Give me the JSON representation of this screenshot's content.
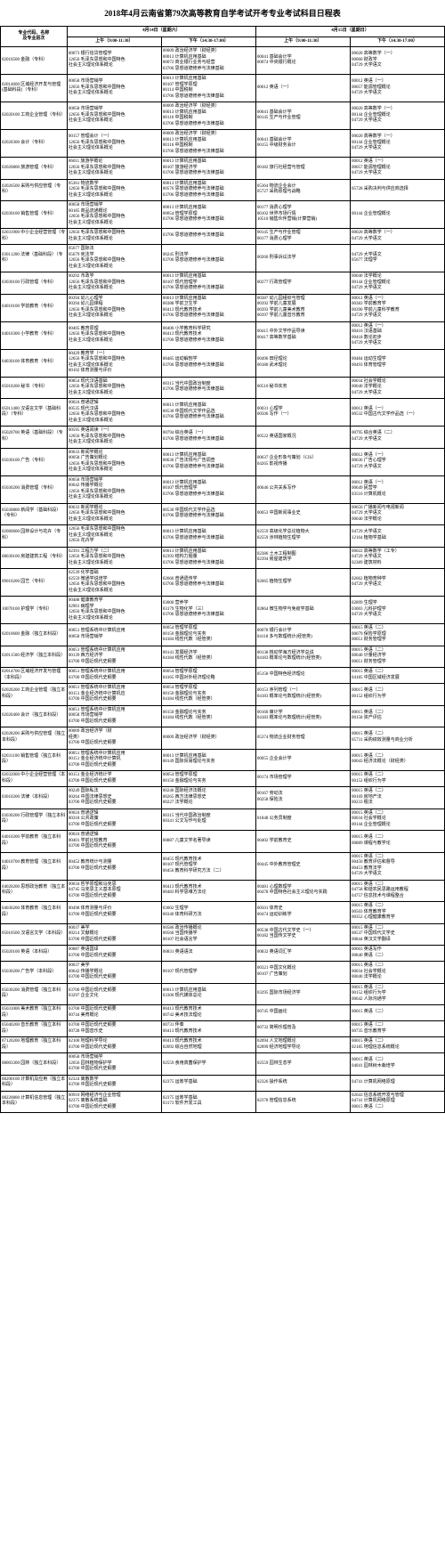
{
  "title": "2018年4月云南省第79次高等教育自学考试开考专业考试科目日程表",
  "headers": {
    "major": "专业代码、名称\n及专业层次",
    "day1": "4月14日（星期六）",
    "day2": "4月15日（星期日）",
    "am": "上午（9:00-11:30）",
    "pm": "下午（14:30-17:00）"
  },
  "rows": [
    {
      "major": "02010500 金融（专科）",
      "d1am": "00073 银行信贷管理学\n12656 毛泽东思想和中国特色\n社会主义理论体系概论",
      "d1pm": "00009 政治经济学（财经类）\n00013 计算机应用基础\n00072 商业银行业务与经营\n03706 思想道德修养与法律基础",
      "d2am": "00041 基础会计学\n00074 中央银行概论",
      "d2pm": "00020 高等数学（一）\n00060 财政学\n04729 大学语文"
    },
    {
      "major": "02014600 区域经济开发与管理(基础科段)（专科）",
      "d1am": "00058 市场营销学\n12656 毛泽东思想和中国特色\n社会主义理论体系概论",
      "d1pm": "00013 计算机应用基础\n00107 管理学原理\n00114 中国税制\n03706 思想道德修养与法律基础",
      "d2am": "00012 英语（一）",
      "d2pm": "00012 英语（一）\n00057 能源管理概论\n04729 大学语文"
    },
    {
      "major": "02020100 工商企业管理（专科）",
      "d1am": "00058 市场营销学\n12656 毛泽东思想和中国特色\n社会主义理论体系概论",
      "d1pm": "00009 政治经济学（财经类）\n00013 计算机应用基础\n00116 中国税制\n03706 思想道德修养与法律基础",
      "d2am": "00041 基础会计学\n00145 生产与作业管理",
      "d2pm": "00020 高等数学（一）\n00144 企业管理概论\n04729 大学语文"
    },
    {
      "major": "02020300 会计（专科）",
      "d1am": "00157 管理会计（一）\n12656 毛泽东思想和中国特色\n社会主义理论体系概论",
      "d1pm": "00009 政治经济学（财经类）\n00013 计算机应用基础\n00116 中国税制\n03706 思想道德修养与法律基础",
      "d2am": "00041 基础会计学\n00155 中级财务会计",
      "d2pm": "00020 高等数学（一）\n00144 企业管理概论\n04729 大学语文"
    },
    {
      "major": "02020800 旅游管理（专科）",
      "d1am": "06011 旅游学概论\n12656 毛泽东思想和中国特色\n社会主义理论体系概论",
      "d1pm": "00013 计算机应用基础\n00107 旅游经济学\n03706 思想道德修养与法律基础",
      "d2am": "00182 旅行社经营与管理",
      "d2pm": "00012 英语（一）\n00057 能源管理概论\n04729 大学语文"
    },
    {
      "major": "02026500 采购与供应管理（专科）",
      "d1am": "05361 物流数学\n12656 毛泽东思想和中国特色\n社会主义理论体系概论",
      "d1pm": "00013 计算机应用基础\n00576 思想道德修养与法律基础\n03706 思想道德修养与法律基础",
      "d2am": "05364 物流企业会计\n05727 采购原理与战略",
      "d2pm": "05728 采购决判与供应商选择"
    },
    {
      "major": "02030100 销售管理（专科）",
      "d1am": "00058 市场营销学\n00185 商品流通概论\n12656 毛泽东思想和中国特色\n社会主义理论体系概论",
      "d1pm": "00013 计算机应用基础\n00054 管理学原理\n03706 思想道德修养与法律基础",
      "d2am": "00177 消费心理学\n00102 世界市场行情\n10510 销售伙伴营销(计算营销)",
      "d2pm": "00144 企业管理概论"
    },
    {
      "major": "02031900 中小企业经营管理（专科）",
      "d1am": "12656 毛泽东思想和中国特色\n社会主义理论体系概论",
      "d1pm": "03706 思想道德修养与法律基础",
      "d2am": "00145 生产与作业管理\n00177 消费心理学",
      "d2pm": "00020 高等数学（一）\n04729 大学语文"
    },
    {
      "major": "03011200 法律（基础科段）（专科）",
      "d1am": "05677 国际法\n05679 宪法学\n12656 毛泽东思想和中国特色\n社会主义理论体系概论",
      "d1pm": "00245 刑法学\n03706 思想道德修养与法律基础",
      "d2am": "00260 刑事诉讼法学",
      "d2pm": "04729 大学语文\n05677 法理学"
    },
    {
      "major": "03030100 行政管理（专科）",
      "d1am": "00292 市政学\n12656 毛泽东思想和中国特色\n社会主义理论体系概论",
      "d1pm": "00013 计算机应用基础\n00107 现代管理学\n03706 思想道德修养与法律基础",
      "d2am": "00277 行政管理学",
      "d2pm": "00040 法学概论\n00144 企业管理概论\n04729 大学语文"
    },
    {
      "major": "04010100 学前教育（专科）",
      "d1am": "00394 幼儿心理学\n00394 幼儿园课程\n12656 毛泽东思想和中国特色\n社会主义理论体系概论",
      "d1pm": "00013 计算机应用基础\n00388 学前卫生学\n00413 现代教育技术\n03706 思想道德修养与法律基础",
      "d2am": "00387 幼儿园组织与管理\n00392 学前儿童发展\n00393 学前儿童美术教育\n00397 学前儿童音乐教育",
      "d2pm": "00012 英语（一）\n00383 学前教育学\n00390 学前儿童科学教育\n04729 大学语文"
    },
    {
      "major": "04010300 小学教育（专科）",
      "d1am": "00405 教育原理\n12656 毛泽东思想和中国特色\n社会主义理论体系概论",
      "d1pm": "00406 小学教育科学研究\n00413 现代教育技术\n03706 思想道德修养与法律基础",
      "d2am": "00415 中外文学作品导读\n00417 高等数学基础",
      "d2pm": "00012 英语（一）\n00416 汉语基础\n00418 数论初步\n04729 大学语文"
    },
    {
      "major": "04030100 体育教育（专科）",
      "d1am": "00429 教育学（一）\n12656 毛泽东思想和中国特色\n社会主义理论体系概论\n00102 体育测量与评价",
      "d1pm": "00485 运动解剖学\n03706 思想道德修养与法律基础",
      "d2am": "00496 田径理论\n00180 武术理论",
      "d2pm": "00484 运动生理学\n00493 体育管理学"
    },
    {
      "major": "05010200 秘书（专科）",
      "d1am": "00854 现代汉语基础\n12656 毛泽东思想和中国特色\n社会主义理论体系概论",
      "d1pm": "00315 当代中国政治制度\n03706 思想道德修养与法律基础",
      "d2am": "00510 秘书实务",
      "d2pm": "00034 社会学概论\n00040 法学概论\n04729 大学语文"
    },
    {
      "major": "05011400 汉语言文学（基础科段）（专科）",
      "d1am": "00024 普通逻辑\n00535 现代汉语\n12656 毛泽东思想和中国特色\n社会主义理论体系概论",
      "d1pm": "00013 计算机应用基础\n00530 中国现代文学作品选\n03706 思想道德修养与法律基础",
      "d2am": "00031 心理学\n00506 写作（一）",
      "d2pm": "00012 英语（一）\n00532 中国古代文学作品选（一）"
    },
    {
      "major": "05020700 英语（基础科段）（专科）",
      "d1am": "00595 英语阅读（一）\n12656 毛泽东思想和中国特色\n社会主义理论体系概论",
      "d1pm": "00794 综合英语（一）\n03706 思想道德修养与法律基础",
      "d2am": "00522 英语国家概况",
      "d2pm": "00795 综合英语（二）\n04729 大学语文"
    },
    {
      "major": "05030100 广告（专科）",
      "d1am": "00633 新闻学概论\n00058 广告策划概论\n12656 毛泽东思想和中国特色\n社会主义理论体系概论",
      "d1pm": "00013 计算机应用基础\n00636 广告法规与广告调查\n03706 思想道德修养与法律基础",
      "d2am": "00637 企业形象与策划（CIS）\n04265 影视传播",
      "d2pm": "00012 英语（一）\n00636 广告心理学\n04729 大学语文"
    },
    {
      "major": "05030200 消费管理（专科）",
      "d1am": "00058 市场营销学\n00642 传播学概论\n12656 毛泽东思想和中国特色\n社会主义理论体系概论",
      "d1pm": "00013 计算机应用基础\n00107 现代管理学\n03706 思想道德修养与法律基础",
      "d2am": "00646 公共关系写作",
      "d2pm": "00012 英语（一）\n00649 民营学\n03516 计算机概论"
    },
    {
      "major": "05030800 新闻学（基础科段）（专科）",
      "d1am": "00633 新闻学概论\n12656 毛泽东思想和中国特色\n社会主义理论体系概论",
      "d1pm": "00530 中国现代文学作品选\n03706 思想道德修养与法律基础",
      "d2am": "00653 中国新闻事业史",
      "d2pm": "00656 广播新闻与电视新闻\n04729 大学语文\n00040 法学概论"
    },
    {
      "major": "02060600 园林设计与花卉（专科）",
      "d1am": "12656 毛泽东思想和中国特色\n社会主义理论体系概论\n12656 花卉学",
      "d1pm": "00013 计算机应用基础\n03706 思想道德修养与法律基础",
      "d2am": "02559 高级化学总论植物大\n02559 涉林植物生理学",
      "d2pm": "04729 大学语文\n12164 植物学基础"
    },
    {
      "major": "08030100 房建建筑工程（专科）",
      "d1am": "02391 工程力学（二）\n12656 毛泽东思想和中国特色\n社会主义理论体系概论",
      "d1pm": "00013 计算机应用基础\n02393 结构力题量\n03706 思想道德修养与法律基础",
      "d2am": "02386 土木工程制图\n02394 房屋建筑学",
      "d2pm": "00022 高等数学（工专）\n04729 大学语文\n02389 建筑材料"
    },
    {
      "major": "09010200 园艺（专科）",
      "d1am": "02539 化学基础\n02559 微通学说培学\n12656 毛泽东思想和中国特色\n社会主义理论体系概论",
      "d1pm": "02666 普通遗传学\n03706 思想道德修养与法律基础",
      "d2am": "02665 植物生理学",
      "d2pm": "02662 植物育种学\n04729 大学语文"
    },
    {
      "major": "10070100 护理学（专科）",
      "d1am": "00488 健康教育学\n02901 病理学\n12656 毛泽东思想和中国特色\n社会主义理论体系概论",
      "d1pm": "03000 营养学\n03179 生物化学（三）\n03706 思想道德修养与法律基础",
      "d2am": "02864 微生物学与免疫学基础",
      "d2pm": "02899 生理学\n03003 儿科护理学\n04729 大学语文"
    },
    {
      "major": "02010600 金融（独立本科段）",
      "d1am": "00051 管理系统中计算机应用\n00058 市场营销学",
      "d1pm": "00054 管理学原理\n00150 金融理论与实务\n04184 线性代数（经管类）",
      "d2am": "00078 银行会计学\n04118 多与数理统计(经管类)",
      "d2pm": "00015 英语（二）\n00079 保险学原理\n00051 财务管理学"
    },
    {
      "major": "02011500 经济学（独立本科段）",
      "d1am": "00051 管理系统中计算机应用\n00139 西方经济学\n03700 中国近现代史纲要",
      "d1pm": "00141 发展经济学\n04184 线性代数（经管类）",
      "d2am": "00138 核动学海方经济学总说\n04183 概率论与数理统计(经管类)",
      "d2pm": "00015 英语（二）\n00040 计量经济学\n00051 财务管理学"
    },
    {
      "major": "02014700 区域经济开发与管理（本科段）",
      "d1am": "00051 管理系统中计算机应用\n03700 中国近现代史纲要",
      "d1pm": "00054 管理学原理\n04165 中国对外经济理论略",
      "d2am": "05158 中国特色经济理论",
      "d2pm": "00015 英语（二）\n04185 中国区域经济发展"
    },
    {
      "major": "02020200 工商企业管理（独立本科段）",
      "d1am": "00051 管理系统中计算机应用\n00151 金业经济统中计算机应\n03700 中国近现代史纲要",
      "d1pm": "00054 管理学原理\n00150 金融理论与实务\n04184 线性代数（经管类）",
      "d2am": "00153 序列管理（一）\n04183 概率论与数理统计(经管类)",
      "d2pm": "00015 英语（二）\n00152 组织行为学"
    },
    {
      "major": "02020400 会计（独立本科段）",
      "d1am": "00051 管理系统中计算机应用\n00058 市场营销学\n03700 中国近现代史纲要",
      "d1pm": "00150 金融理论与实务\n04184 线性代数（经管类）",
      "d2am": "00160 审计学\n04183 概率论与数理统计(经管类)",
      "d2pm": "00015 英语（二）\n00158 资产评估"
    },
    {
      "major": "02028200 采购与供应管理（独立本科段）",
      "d1am": "00009 政治经济学（财\n经类）\n03700 中国近现代史纲要",
      "d1pm": "00009 政治经济学（财经类）",
      "d2am": "05374 物流企业财务管理",
      "d2pm": "00015 英语（二）\n05731 采购绩效测量与商业分析"
    },
    {
      "major": "02031100 销售管理（独立本科段）",
      "d1am": "00051 管理系统中计算机应用\n00151 金业经济统中计算机\n03700 中国近现代史纲要",
      "d1pm": "00013 计算机应用基础\n00149 国际贸易理论与实务",
      "d2am": "00055 企业会计学",
      "d2pm": "00015 英语（二）\n00043 经济法概论（财经类）"
    },
    {
      "major": "02032000 中小企业经营管理（本科段）",
      "d1am": "00151 金业经济统计学\n03700 中国近现代史纲要",
      "d1pm": "00054 管理学原理\n00150 金融理论与实务",
      "d2am": "00174 市场管理学",
      "d2pm": "00015 英语（二）\n00152 组织行为学"
    },
    {
      "major": "03010200 法律（本科段）",
      "d1am": "00249 国际私法\n00264 中国法律思想史\n03700 中国近现代史纲要",
      "d1pm": "00246 国际经济法概论\n00265 西方法律思想史\n00227 法学概论",
      "d2am": "00167 劳动法\n00258 保险法",
      "d2pm": "00015 英语（二）\n00169 房地产法\n00233 税法"
    },
    {
      "major": "03030200 行政管理学（独立本科段）",
      "d1am": "00024 普通逻辑\n00318 公共政策\n03700 中国近现代史纲要",
      "d1pm": "00315 当代中国政治制度\n00341 公文写作与处理",
      "d2am": "01848 公务员制度",
      "d2pm": "00015 英语（二）\n00034 社会学概论\n00144 企业管理概论"
    },
    {
      "major": "04010200 学前教育（独立本科段）",
      "d1am": "00024 普通逻辑\n00401 学前比较教育\n03700 中国近现代史纲要",
      "d1pm": "00887 儿童文学名著导读",
      "d2am": "00402 学前教育史",
      "d2pm": "00015 英语（二）\n00889 课程与教学论"
    },
    {
      "major": "04010700 教育管理（独立本科段）",
      "d1am": "00452 教育统计与测量\n03700 中国近现代史纲要",
      "d1pm": "00455 现代教育技术\n00107 现代管理学\n00456 教育科学研究方法（二）",
      "d2am": "00445 中外教育管理史",
      "d2pm": "00015 英语（二）\n00450 教育评估和督导\n00453 教育法学\n04729 大学语文"
    },
    {
      "major": "04020200 思想政治教育（独立本科段）",
      "d1am": "00034 哲学原理和马克思\n04745 马克思主义基本原理\n03700 中国近现代史纲要",
      "d1pm": "00413 现代教育技术\n00483 科学思维方法论",
      "d2am": "00481 心理数理学\n00478 中国特色社会主义理论与实践",
      "d2pm": "00015 英语（二）\n04758 和谐农民思路运用教程\n04757 信息技术与课程整合"
    },
    {
      "major": "04030200 体育教育（独立本科段）",
      "d1am": "00498 体育测量与评价\n03700 中国近现代史纲要",
      "d1pm": "03002 生理学\n00340 体育科研方法",
      "d2am": "00501 体育史\n00474 运动训练学",
      "d2pm": "00015 英语（二）\n00503 体育教育学\n00352 心理健康教育学"
    },
    {
      "major": "05010500 汉语言文学（本科段）",
      "d1am": "00037 美学\n00214 文献概论\n03700 中国近现代史纲要",
      "d1pm": "00586 政治传播概论\n00566 当国传播学\n00107 社会语言学",
      "d2am": "00538 中国古代文学史（一）\n00182 当国传文学史",
      "d2pm": "00015 英语（二）\n00537 中国现代文学史\n00844 英汉文学翻译"
    },
    {
      "major": "05020100 英语（本科段）",
      "d1am": "00087 英语国译\n03700 中国近现代史纲要",
      "d1pm": "00831 英语语法",
      "d2am": "00832 英语词汇学",
      "d2pm": "00603 英语写作\n00840 英语（二）"
    },
    {
      "major": "05030200 广告学（本科段）",
      "d1am": "00037 美学\n00642 传播学概论\n03700 中国近现代史纲要",
      "d1pm": "00107 现代管理学",
      "d2am": "00321 中国文化概论\n00107 广告策划",
      "d2pm": "00015 英语（二）\n00034 社会学概论\n00040 法学概论"
    },
    {
      "major": "05030200 消费管理（独立本科段）",
      "d1am": "03700 中国近现代史纲要\n03297 企业文化",
      "d1pm": "00013 计算机应用基础\n03300 现代媒体总论",
      "d2am": "03295 国际市场经济学",
      "d2pm": "00015 英语（二）\n00152 组织行为学\n00642 人际沟通学"
    },
    {
      "major": "05031000 美术教育（独立本科段）",
      "d1am": "03700 中国近现代史纲要\n00744 美育概论",
      "d1pm": "00413 现代教育技术\n00742 美术技法理论",
      "d2am": "00745 中国画论",
      "d2pm": "00015 英语（二）"
    },
    {
      "major": "05040200 音乐教育（独立本科段）",
      "d1am": "03700 中国近现代史纲要\n00728 中国音乐史",
      "d1pm": "00731 伴奏\n00413 现代教育技术",
      "d2am": "00732 简明乐理普及",
      "d2pm": "00015 英语（二）\n00735 音乐教育学"
    },
    {
      "major": "07120200 地理教育（独立本科段）",
      "d1am": "02100 地理科学导论\n03700 中国近现代史纲要",
      "d1pm": "00413 现代教育技术\n02092 综合自然地理",
      "d2am": "02094 人文地理概论\n02099 经济地理学导论",
      "d2pm": "00015 英语（二）\n02185 地理信息系统概论"
    },
    {
      "major": "08003300 园林（独立本科段）",
      "d1am": "00058 市场营销学\n12656 园林植物保护学\n03700 中国近现代史纲要",
      "d1pm": "02559 食用真菌保护学",
      "d2am": "02559 园林生态学",
      "d2pm": "00015 英语（二）\n04041 园林树木栽培学"
    },
    {
      "major": "08200100 计算机及应用（独立本科段）",
      "d1am": "02324 离散数学\n03700 中国近现代史纲要",
      "d1pm": "02375 运筹学基础",
      "d2am": "02326 操作系统",
      "d2pm": "04741 计算机网络原理"
    },
    {
      "major": "08220800 计算机信息管理（独立本科段）",
      "d1am": "00910 网络经济与企业管理\n02375 离散系统基础\n03700 中国近现代史纲要",
      "d1pm": "02375 运筹学基础\n03173 软件开发工具",
      "d2am": "02378 管理信息系统",
      "d2pm": "02643 信息系统开发与管理\n04741 计算机网络原理\n00015 英语（二）"
    }
  ]
}
